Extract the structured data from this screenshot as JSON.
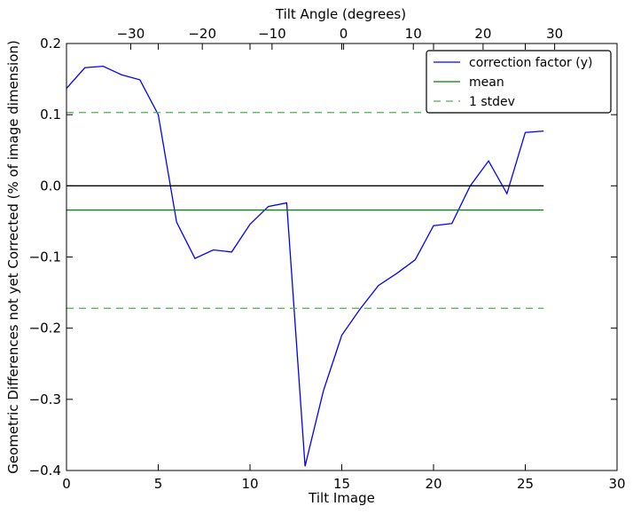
{
  "chart_data": {
    "type": "line",
    "title": "",
    "xlabel": "Tilt Image",
    "ylabel": "Geometric Differences not yet Corrected (% of image dimension)",
    "top_xlabel": "Tilt Angle (degrees)",
    "xlim": [
      0,
      30
    ],
    "ylim": [
      -0.4,
      0.2
    ],
    "x_ticks": [
      0,
      5,
      10,
      15,
      20,
      25,
      30
    ],
    "y_ticks": [
      0.2,
      0.1,
      0.0,
      -0.1,
      -0.2,
      -0.3,
      -0.4
    ],
    "x_tick_labels": [
      "0",
      "5",
      "10",
      "15",
      "20",
      "25",
      "30"
    ],
    "y_tick_labels": [
      "0.2",
      "0.1",
      "0.0",
      "−0.1",
      "−0.2",
      "−0.3",
      "−0.4"
    ],
    "top_ticks": [
      {
        "label": "−30",
        "x": 3.5
      },
      {
        "label": "−20",
        "x": 7.4
      },
      {
        "label": "−10",
        "x": 11.2
      },
      {
        "label": "0",
        "x": 15.1
      },
      {
        "label": "10",
        "x": 18.9
      },
      {
        "label": "20",
        "x": 22.7
      },
      {
        "label": "30",
        "x": 26.6
      }
    ],
    "grid": false,
    "legend_position": "top-right",
    "series": [
      {
        "name": "correction factor (y)",
        "color": "#0000ff",
        "style": "solid",
        "x": [
          0,
          1,
          2,
          3,
          4,
          5,
          6,
          7,
          8,
          9,
          10,
          11,
          12,
          13,
          14,
          15,
          16,
          17,
          18,
          19,
          20,
          21,
          22,
          23,
          24,
          25,
          26
        ],
        "y": [
          0.137,
          0.166,
          0.168,
          0.156,
          0.149,
          0.1,
          -0.051,
          -0.102,
          -0.09,
          -0.093,
          -0.054,
          -0.029,
          -0.024,
          -0.394,
          -0.288,
          -0.21,
          -0.173,
          -0.14,
          -0.123,
          -0.104,
          -0.056,
          -0.053,
          0.0,
          0.035,
          -0.011,
          0.075,
          0.077
        ]
      },
      {
        "name": "mean",
        "color": "#008000",
        "style": "solid",
        "x": [
          0,
          26
        ],
        "y": [
          -0.034,
          -0.034
        ]
      },
      {
        "name": "1 stdev",
        "color": "#4caf50",
        "style": "dashed",
        "x": [
          0,
          26
        ],
        "y": [
          0.103,
          0.103
        ]
      },
      {
        "name": "",
        "color": "#4caf50",
        "style": "dashed",
        "x": [
          0,
          26
        ],
        "y": [
          -0.172,
          -0.172
        ]
      },
      {
        "name": "",
        "color": "#000000",
        "style": "solid",
        "x": [
          0,
          26
        ],
        "y": [
          0.0,
          0.0
        ]
      }
    ],
    "legend": [
      {
        "label": "correction factor (y)",
        "color": "#0000ff",
        "style": "solid"
      },
      {
        "label": "mean",
        "color": "#008000",
        "style": "solid"
      },
      {
        "label": "1 stdev",
        "color": "#4caf50",
        "style": "dashed"
      }
    ]
  }
}
